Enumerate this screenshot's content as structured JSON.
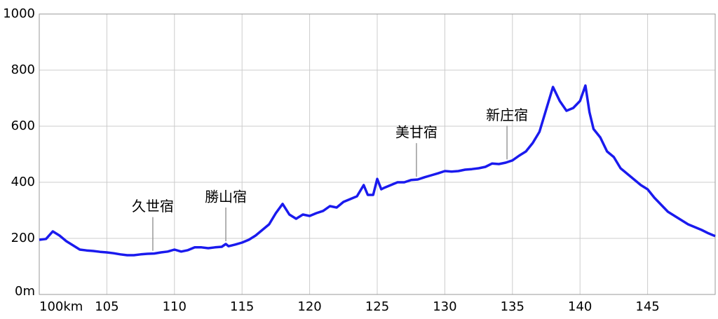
{
  "chart_data": {
    "type": "line",
    "x": [
      100,
      100.5,
      101,
      101.5,
      102,
      102.5,
      103,
      103.5,
      104,
      104.5,
      105,
      105.5,
      106,
      106.5,
      107,
      107.5,
      108,
      108.5,
      109,
      109.5,
      110,
      110.5,
      111,
      111.5,
      112,
      112.5,
      113,
      113.5,
      113.8,
      114,
      114.5,
      115,
      115.5,
      116,
      116.5,
      117,
      117.5,
      118,
      118.5,
      119,
      119.5,
      120,
      120.5,
      121,
      121.5,
      122,
      122.5,
      123,
      123.5,
      124,
      124.3,
      124.7,
      125,
      125.3,
      125.5,
      126,
      126.5,
      127,
      127.5,
      128,
      128.5,
      129,
      129.5,
      130,
      130.5,
      131,
      131.5,
      132,
      132.5,
      133,
      133.5,
      134,
      134.5,
      135,
      135.5,
      136,
      136.5,
      137,
      137.5,
      138,
      138.5,
      139,
      139.5,
      140,
      140.4,
      140.7,
      141,
      141.5,
      142,
      142.5,
      143,
      143.5,
      144,
      144.5,
      145,
      145.5,
      146,
      146.5,
      147,
      147.5,
      148,
      148.5,
      149,
      149.5,
      150
    ],
    "series": [
      {
        "color": "#1a1aee",
        "values": [
          195,
          198,
          225,
          210,
          190,
          175,
          160,
          157,
          155,
          152,
          150,
          147,
          143,
          140,
          140,
          143,
          145,
          146,
          150,
          153,
          160,
          153,
          158,
          168,
          168,
          165,
          168,
          170,
          180,
          172,
          178,
          185,
          195,
          210,
          230,
          250,
          290,
          323,
          285,
          270,
          285,
          280,
          290,
          298,
          315,
          310,
          330,
          340,
          350,
          390,
          355,
          355,
          412,
          375,
          380,
          390,
          400,
          400,
          408,
          410,
          418,
          425,
          432,
          440,
          438,
          440,
          445,
          447,
          450,
          455,
          467,
          465,
          470,
          478,
          495,
          510,
          540,
          580,
          660,
          740,
          690,
          655,
          665,
          690,
          745,
          650,
          590,
          560,
          510,
          490,
          450,
          430,
          410,
          390,
          375,
          345,
          320,
          295,
          280,
          265,
          250,
          240,
          230,
          218,
          208
        ]
      }
    ],
    "xlim": [
      100,
      150
    ],
    "ylim": [
      0,
      1000
    ],
    "xticks": [
      {
        "value": 100,
        "label": "100km"
      },
      105,
      110,
      115,
      120,
      125,
      130,
      135,
      140,
      145
    ],
    "yticks": [
      {
        "value": 0,
        "label": "0m"
      },
      200,
      400,
      600,
      800,
      1000
    ],
    "grid": true,
    "annotations": [
      {
        "text": "久世宿",
        "x": 108.4
      },
      {
        "text": "勝山宿",
        "x": 113.8
      },
      {
        "text": "美甘宿",
        "x": 127.9
      },
      {
        "text": "新庄宿",
        "x": 134.6
      }
    ]
  }
}
